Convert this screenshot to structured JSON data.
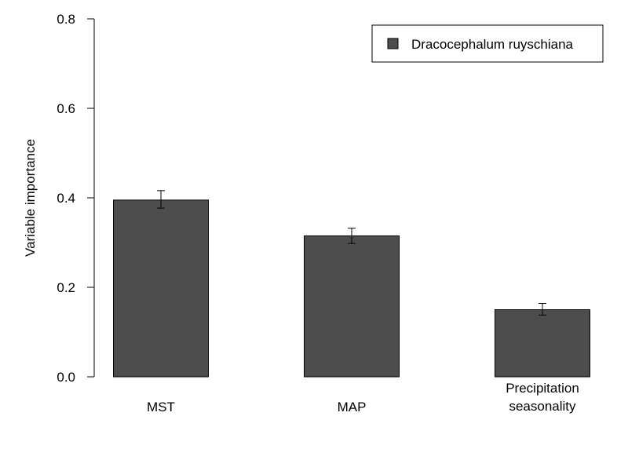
{
  "chart_data": {
    "type": "bar",
    "title": "",
    "xlabel": "",
    "ylabel": "Variable importance",
    "ylim": [
      0,
      0.8
    ],
    "yticks": [
      "0.0",
      "0.2",
      "0.4",
      "0.6",
      "0.8"
    ],
    "categories": [
      [
        "MST"
      ],
      [
        "MAP"
      ],
      [
        "Precipitation",
        "seasonality"
      ]
    ],
    "series": [
      {
        "name": "Dracocephalum ruyschiana",
        "color": "#4d4d4d",
        "values": [
          0.395,
          0.315,
          0.15
        ],
        "error_low": [
          0.377,
          0.298,
          0.138
        ],
        "error_high": [
          0.416,
          0.332,
          0.164
        ]
      }
    ],
    "legend": {
      "position": "top-right",
      "entries": [
        "Dracocephalum ruyschiana"
      ]
    },
    "grid": false
  }
}
